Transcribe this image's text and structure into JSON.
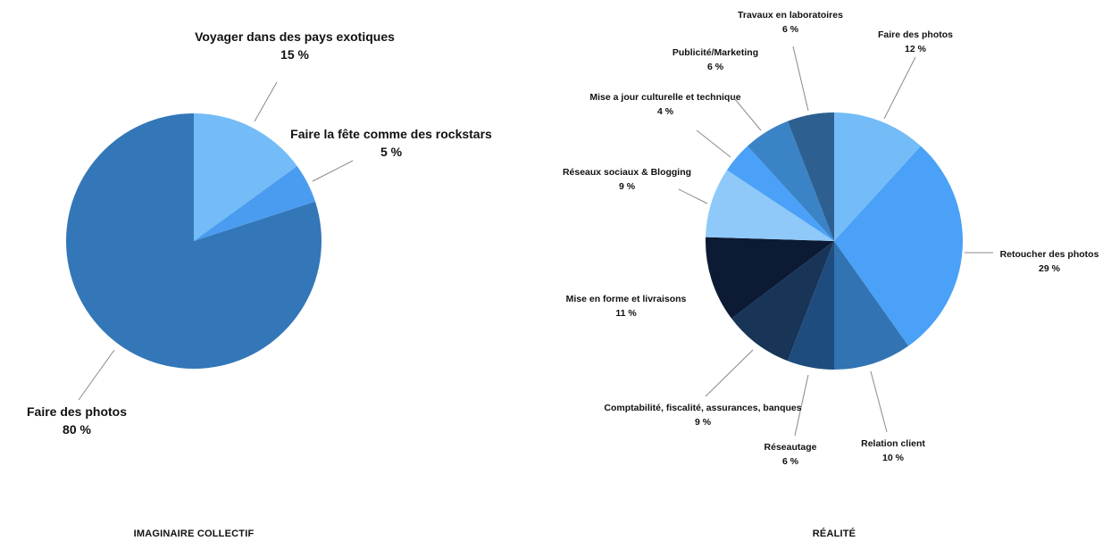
{
  "chart_data": [
    {
      "type": "pie",
      "title": "IMAGINAIRE COLLECTIF",
      "slices": [
        {
          "label": "Voyager dans des pays exotiques",
          "value": 15,
          "value_label": "15 %",
          "color": "#74bcf7"
        },
        {
          "label": "Faire la fête comme des rockstars",
          "value": 5,
          "value_label": "5 %",
          "color": "#4a9cf0"
        },
        {
          "label": "Faire des photos",
          "value": 80,
          "value_label": "80 %",
          "color": "#3377b8"
        }
      ]
    },
    {
      "type": "pie",
      "title": "RÉALITÉ",
      "slices": [
        {
          "label": "Faire des photos",
          "value": 12,
          "value_label": "12 %",
          "color": "#74bcf7"
        },
        {
          "label": "Retoucher des photos",
          "value": 29,
          "value_label": "29 %",
          "color": "#4aa1f7"
        },
        {
          "label": "Relation client",
          "value": 10,
          "value_label": "10 %",
          "color": "#3173b3"
        },
        {
          "label": "Réseautage",
          "value": 6,
          "value_label": "6 %",
          "color": "#1f4c7e"
        },
        {
          "label": "Comptabilité, fiscalité, assurances, banques",
          "value": 9,
          "value_label": "9 %",
          "color": "#183558"
        },
        {
          "label": "Mise en forme et livraisons",
          "value": 11,
          "value_label": "11 %",
          "color": "#0c1a33"
        },
        {
          "label": "Réseaux sociaux & Blogging",
          "value": 9,
          "value_label": "9 %",
          "color": "#8ec9fa"
        },
        {
          "label": "Mise a jour culturelle et technique",
          "value": 4,
          "value_label": "4 %",
          "color": "#4aa1f7"
        },
        {
          "label": "Publicité/Marketing",
          "value": 6,
          "value_label": "6 %",
          "color": "#3a83c6"
        },
        {
          "label": "Travaux en laboratoires",
          "value": 6,
          "value_label": "6 %",
          "color": "#2d5f90"
        }
      ]
    }
  ]
}
